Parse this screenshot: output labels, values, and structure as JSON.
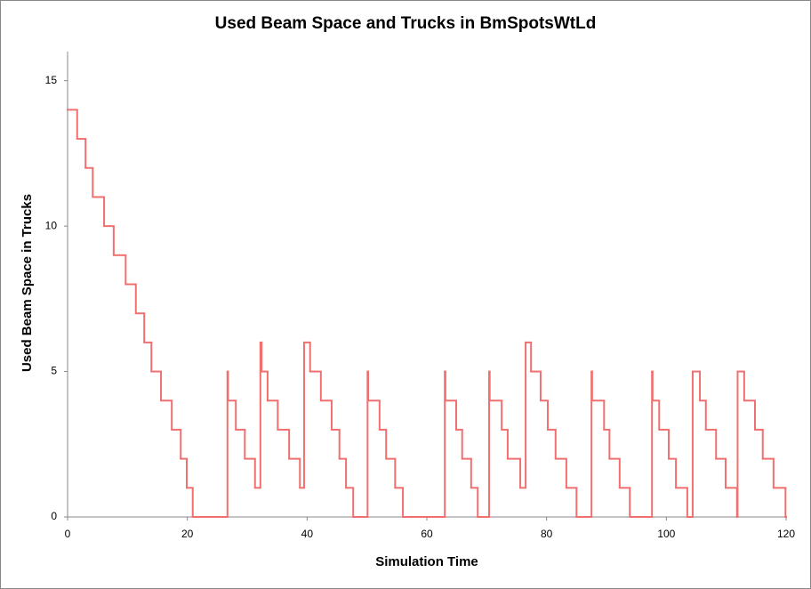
{
  "chart_data": {
    "type": "step",
    "title": "Used Beam Space and Trucks in BmSpotsWtLd",
    "x_label": "Simulation Time",
    "y_label": "Used Beam Space in Trucks",
    "color": "#f07070",
    "xlim": [
      0,
      120
    ],
    "xticks": [
      0,
      20,
      40,
      60,
      80,
      100,
      120
    ],
    "ylim": [
      0,
      16
    ],
    "yticks": [
      0,
      5,
      10,
      15
    ],
    "x": [
      0,
      1.6,
      3.0,
      4.2,
      6.1,
      7.7,
      9.7,
      11.4,
      12.8,
      14.0,
      15.6,
      17.4,
      18.9,
      19.9,
      20.9,
      26.7,
      26.8,
      28.1,
      29.6,
      31.3,
      32.2,
      32.4,
      33.4,
      35.1,
      37.0,
      38.8,
      39.5,
      40.5,
      42.3,
      44.1,
      45.4,
      46.5,
      47.7,
      50.1,
      50.2,
      52.1,
      53.2,
      54.7,
      56.0,
      63.0,
      63.1,
      64.9,
      65.9,
      67.4,
      68.5,
      70.4,
      70.5,
      72.5,
      73.5,
      75.6,
      76.5,
      77.4,
      79.0,
      80.2,
      81.5,
      83.3,
      85.0,
      87.5,
      87.6,
      89.6,
      90.5,
      92.2,
      93.9,
      97.6,
      97.7,
      98.8,
      100.4,
      101.6,
      103.5,
      104.4,
      105.6,
      106.6,
      108.3,
      109.9,
      111.8,
      111.9,
      113.0,
      114.8,
      116.1,
      117.9,
      119.9
    ],
    "values": [
      14,
      13,
      12,
      11,
      10,
      9,
      8,
      7,
      6,
      5,
      4,
      3,
      2,
      1,
      0,
      5,
      4,
      3,
      2,
      1,
      6,
      5,
      4,
      3,
      2,
      1,
      6,
      5,
      4,
      3,
      2,
      1,
      0,
      5,
      4,
      3,
      2,
      1,
      0,
      5,
      4,
      3,
      2,
      1,
      0,
      5,
      4,
      3,
      2,
      1,
      6,
      5,
      4,
      3,
      2,
      1,
      0,
      5,
      4,
      3,
      2,
      1,
      0,
      5,
      4,
      3,
      2,
      1,
      0,
      5,
      4,
      3,
      2,
      1,
      0,
      5,
      4,
      3,
      2,
      1,
      0
    ]
  }
}
